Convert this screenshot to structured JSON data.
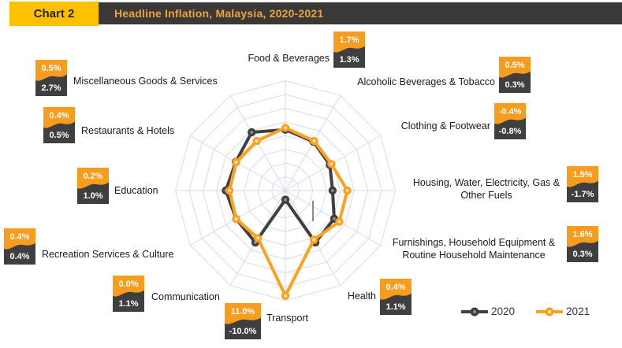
{
  "header": {
    "chart_label": "Chart 2",
    "title": "Headline Inflation, Malaysia, 2020-2021"
  },
  "legend": [
    {
      "label": "2020",
      "color": "#404040",
      "marker_center": "#8f8f8f"
    },
    {
      "label": "2021",
      "color": "#ffa11e",
      "marker_center": "#ffe8c2"
    }
  ],
  "colors": {
    "accent_yellow": "#ffc000",
    "header_bar": "#3b3838",
    "title_text": "#eda33b",
    "badge_orange": "#f79c1d",
    "badge_dark": "#3f3f3f",
    "grid": "#d4dbec",
    "axis_tick": "#595959",
    "series_2020": "#404040",
    "series_2021": "#ffa11e"
  },
  "chart_data": {
    "type": "radar",
    "title": "Headline Inflation, Malaysia, 2020-2021",
    "unit": "%",
    "axis": {
      "min": -12,
      "max": 12,
      "ring_step": 3,
      "grid": true,
      "spokes": true
    },
    "legend_position": "bottom-right",
    "categories": [
      "Food & Beverages",
      "Alcoholic Beverages & Tobacco",
      "Clothing & Footwear",
      "Housing, Water, Electricity, Gas &\nOther Fuels",
      "Furnishings, Household Equipment &\nRoutine Household Maintenance",
      "Health",
      "Transport",
      "Communication",
      "Recreation Services & Culture",
      "Education",
      "Restaurants & Hotels",
      "Miscellaneous Goods & Services"
    ],
    "series": [
      {
        "name": "2020",
        "values": [
          1.3,
          0.3,
          -0.8,
          -1.7,
          0.3,
          1.1,
          -10.0,
          1.1,
          0.4,
          1.0,
          0.5,
          2.7
        ]
      },
      {
        "name": "2021",
        "values": [
          1.7,
          0.5,
          -0.4,
          1.5,
          1.6,
          0.4,
          11.0,
          0.0,
          0.4,
          0.2,
          0.4,
          0.5
        ]
      }
    ]
  }
}
